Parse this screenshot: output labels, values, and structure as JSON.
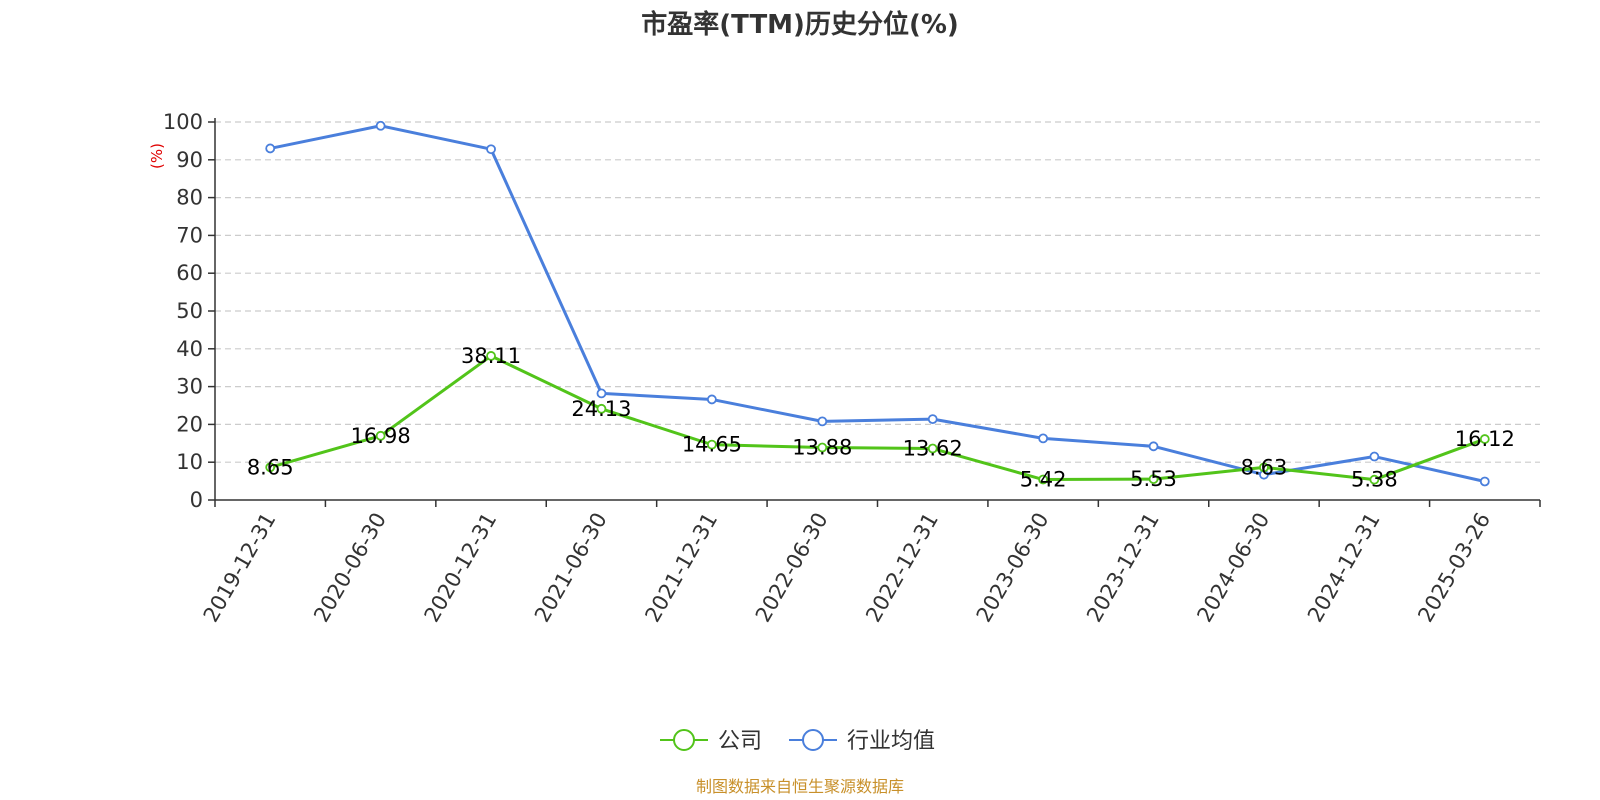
{
  "title": "市盈率(TTM)历史分位(%)",
  "source": "制图数据来自恒生聚源数据库",
  "colors": {
    "company": "#52c41a",
    "industry": "#4a7fdc",
    "grid": "#cccccc",
    "axis": "#333333",
    "unit": "#e00000",
    "source": "#c8902a"
  },
  "chart_data": {
    "type": "line",
    "title": "市盈率(TTM)历史分位(%)",
    "ylabel": "(%)",
    "ylim": [
      0,
      100
    ],
    "yticks": [
      0,
      10,
      20,
      30,
      40,
      50,
      60,
      70,
      80,
      90,
      100
    ],
    "grid": true,
    "legend_position": "bottom-center",
    "categories": [
      "2019-12-31",
      "2020-06-30",
      "2020-12-31",
      "2021-06-30",
      "2021-12-31",
      "2022-06-30",
      "2022-12-31",
      "2023-06-30",
      "2023-12-31",
      "2024-06-30",
      "2024-12-31",
      "2025-03-26"
    ],
    "series": [
      {
        "name": "公司",
        "color": "#52c41a",
        "values": [
          8.65,
          16.98,
          38.11,
          24.13,
          14.65,
          13.88,
          13.62,
          5.42,
          5.53,
          8.63,
          5.38,
          16.12
        ],
        "show_labels": true
      },
      {
        "name": "行业均值",
        "color": "#4a7fdc",
        "values": [
          93.0,
          99.0,
          92.8,
          28.2,
          26.6,
          20.8,
          21.4,
          16.3,
          14.2,
          6.7,
          11.5,
          4.9
        ],
        "show_labels": false
      }
    ]
  }
}
